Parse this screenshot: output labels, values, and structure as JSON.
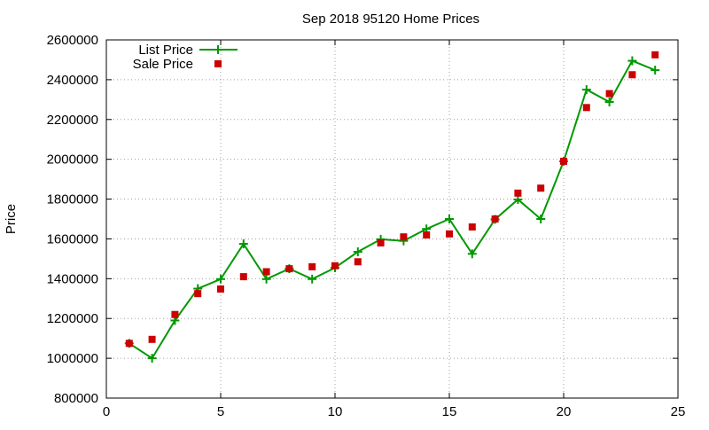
{
  "chart_data": {
    "type": "line",
    "title": "Sep 2018 95120 Home Prices",
    "xlabel": "",
    "ylabel": "Price",
    "xlim": [
      0,
      25
    ],
    "ylim": [
      800000,
      2600000
    ],
    "x_ticks": [
      0,
      5,
      10,
      15,
      20,
      25
    ],
    "y_ticks": [
      800000,
      1000000,
      1200000,
      1400000,
      1600000,
      1800000,
      2000000,
      2200000,
      2400000,
      2600000
    ],
    "grid": true,
    "legend_position": "top-left",
    "x": [
      1,
      2,
      3,
      4,
      5,
      6,
      7,
      8,
      9,
      10,
      11,
      12,
      13,
      14,
      15,
      16,
      17,
      18,
      19,
      20,
      21,
      22,
      23,
      24
    ],
    "series": [
      {
        "name": "List Price",
        "style": "line-with-cross-markers",
        "color": "#009900",
        "values": [
          1075000,
          1000000,
          1190000,
          1350000,
          1398000,
          1575000,
          1398000,
          1450000,
          1398000,
          1455000,
          1535000,
          1598000,
          1590000,
          1650000,
          1700000,
          1525000,
          1698000,
          1798000,
          1700000,
          1990000,
          2350000,
          2288000,
          2495000,
          2448000
        ]
      },
      {
        "name": "Sale Price",
        "style": "square-points",
        "color": "#cc0000",
        "values": [
          1075000,
          1095000,
          1220000,
          1325000,
          1348000,
          1410000,
          1435000,
          1450000,
          1460000,
          1465000,
          1485000,
          1580000,
          1610000,
          1620000,
          1625000,
          1660000,
          1700000,
          1830000,
          1855000,
          1990000,
          2260000,
          2330000,
          2425000,
          2525000
        ]
      }
    ]
  }
}
